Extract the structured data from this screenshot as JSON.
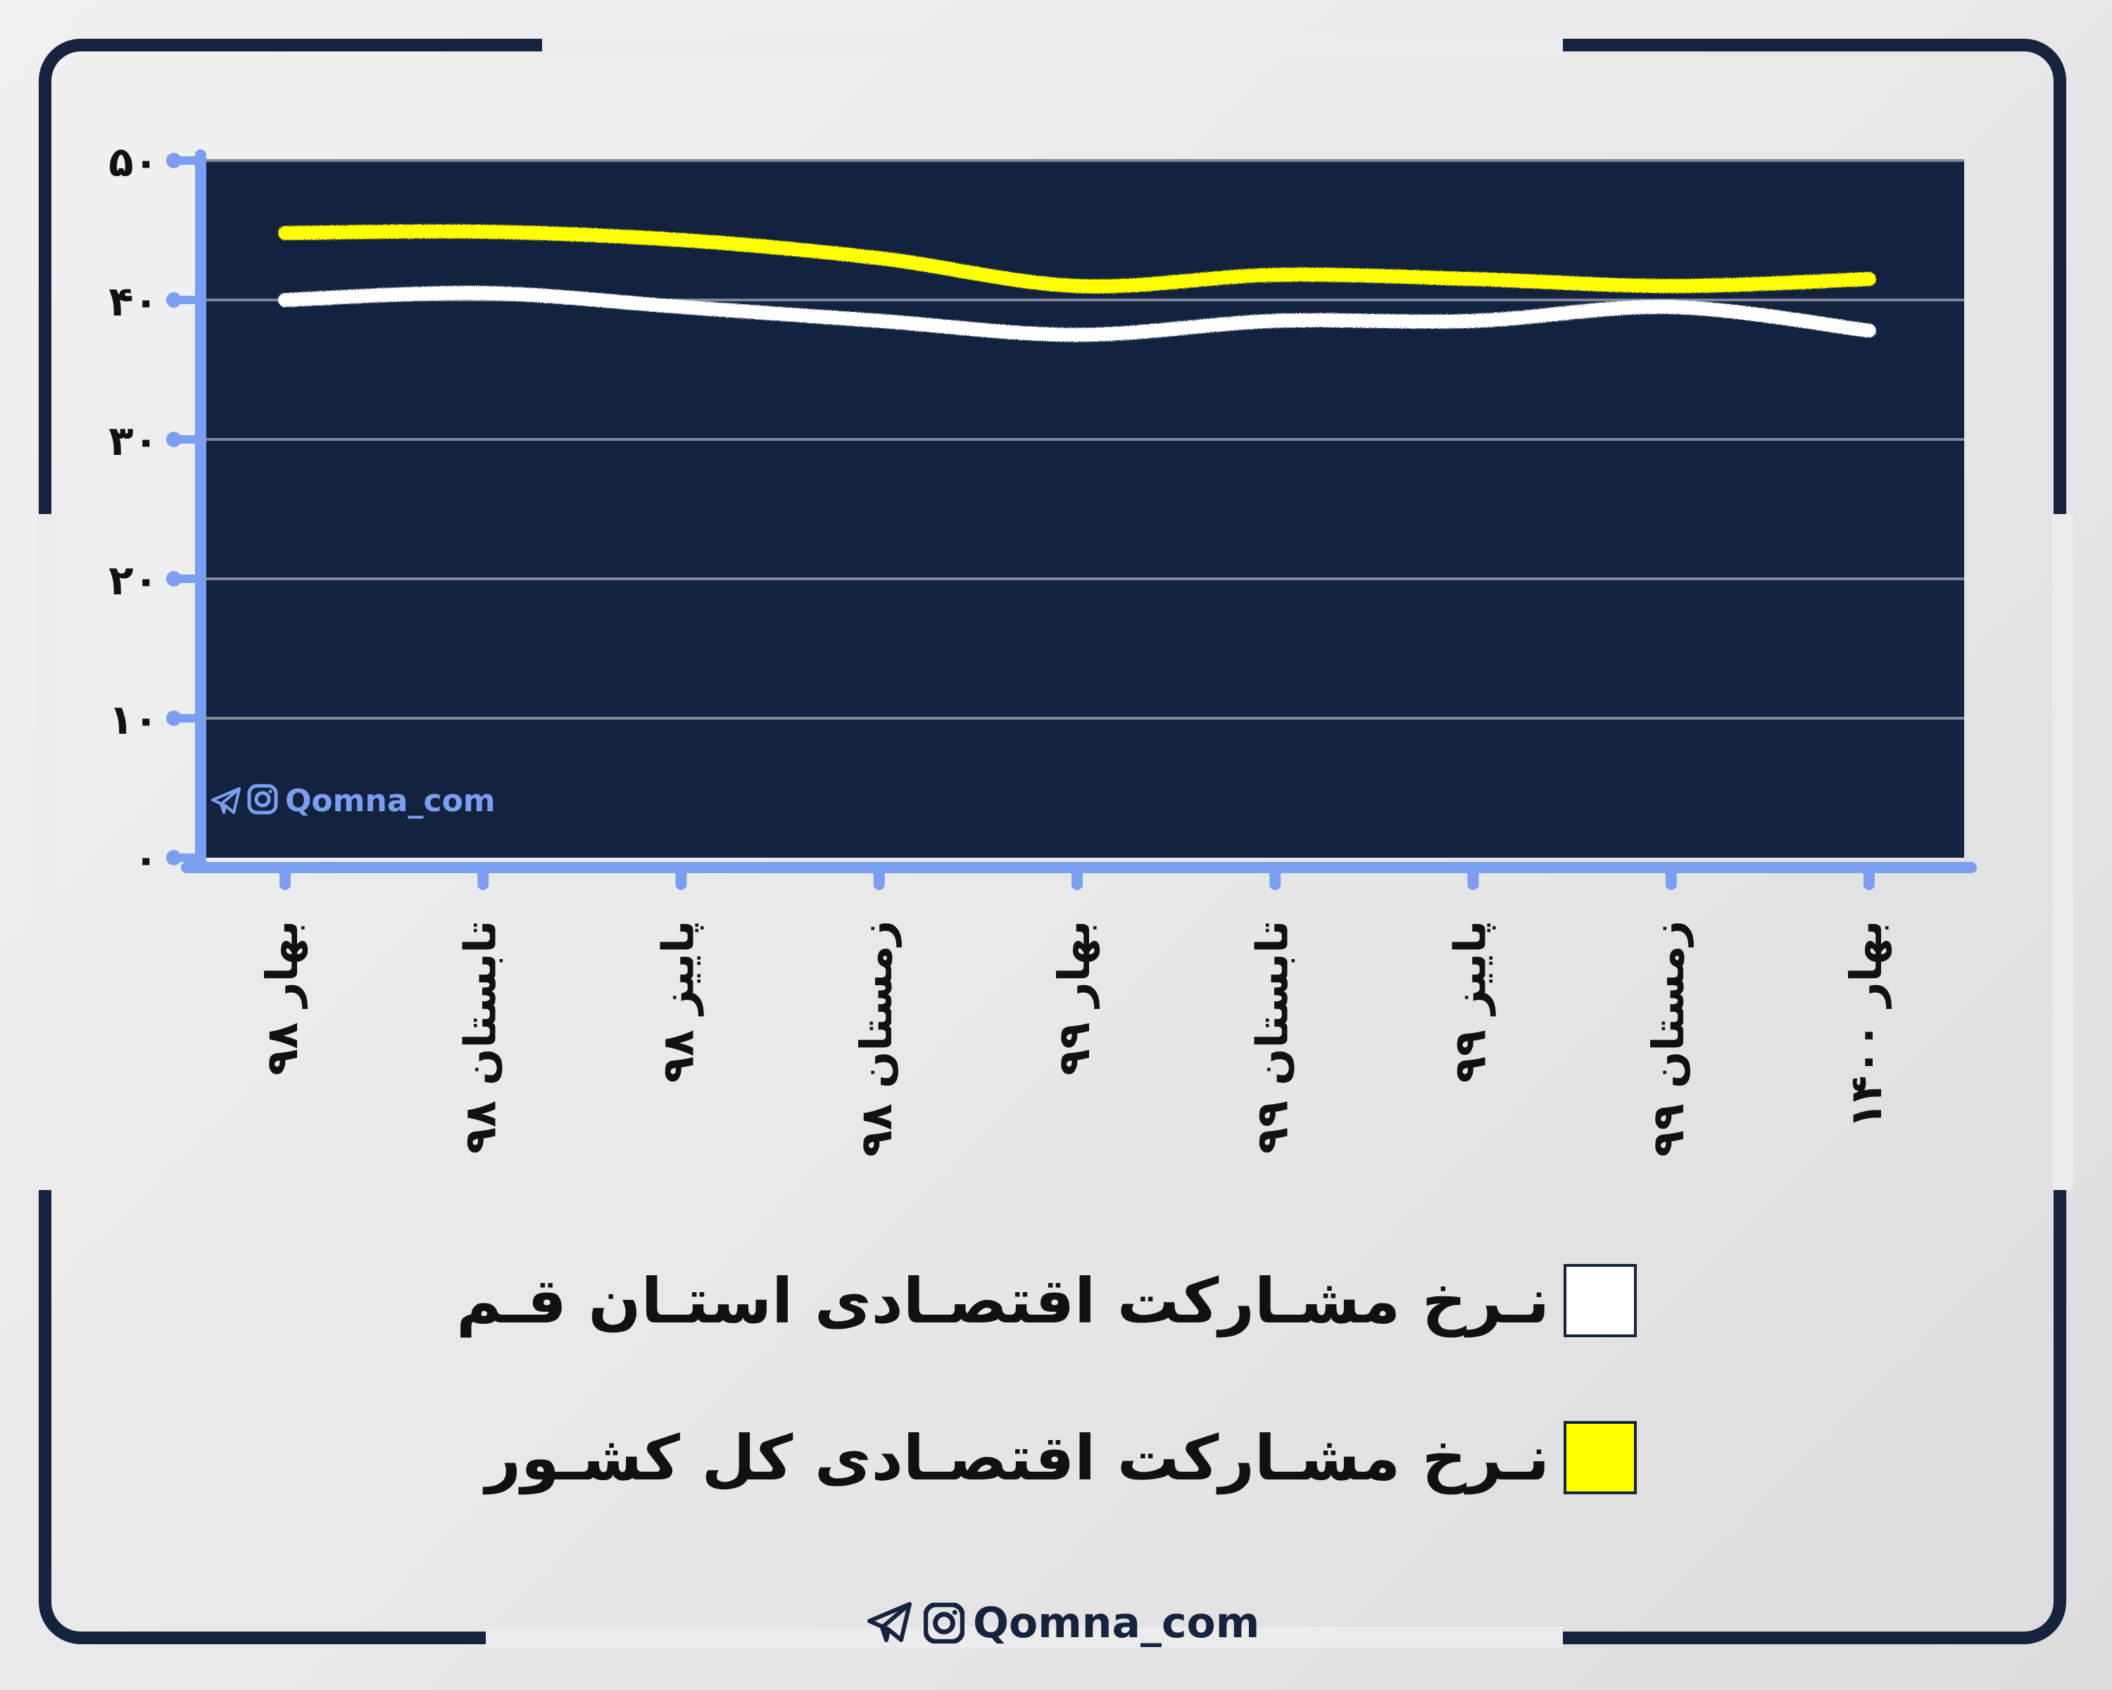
{
  "chart_data": {
    "type": "line",
    "categories": [
      "بهار ۹۸",
      "تابستان ۹۸",
      "پاییز ۹۸",
      "زمستان ۹۸",
      "بهار ۹۹",
      "تابستان ۹۹",
      "پاییز ۹۹",
      "زمستان ۹۹",
      "بهار ۱۴۰۰"
    ],
    "series": [
      {
        "name": "نـرخ مشـارکت اقتصـادی استـان قـم",
        "color": "#ffffff",
        "values": [
          40.0,
          40.5,
          39.5,
          38.5,
          37.5,
          38.5,
          38.5,
          39.5,
          37.8
        ]
      },
      {
        "name": "نـرخ مشـارکت اقتصـادی کل کشـور",
        "color": "#ffff00",
        "values": [
          44.8,
          44.9,
          44.3,
          43.0,
          41.0,
          41.8,
          41.5,
          41.0,
          41.5
        ]
      }
    ],
    "ylim": [
      0,
      50
    ],
    "yticks": [
      0,
      10,
      20,
      30,
      40,
      50
    ],
    "ytick_labels": [
      "۰",
      "۱۰",
      "۲۰",
      "۳۰",
      "۴۰",
      "۵۰"
    ],
    "grid": true,
    "plot_background": "#13233f",
    "axis_color": "#7b9ff0",
    "legend_position": "bottom",
    "title": "",
    "xlabel": "",
    "ylabel": ""
  },
  "watermark_plot": "Qomna_com",
  "watermark_footer": "Qomna_com",
  "colors": {
    "frame": "#16233f",
    "brand_text": "#16233f",
    "watermark_plot_text": "#7b9ff0"
  },
  "icons": [
    "telegram-icon",
    "instagram-icon"
  ]
}
